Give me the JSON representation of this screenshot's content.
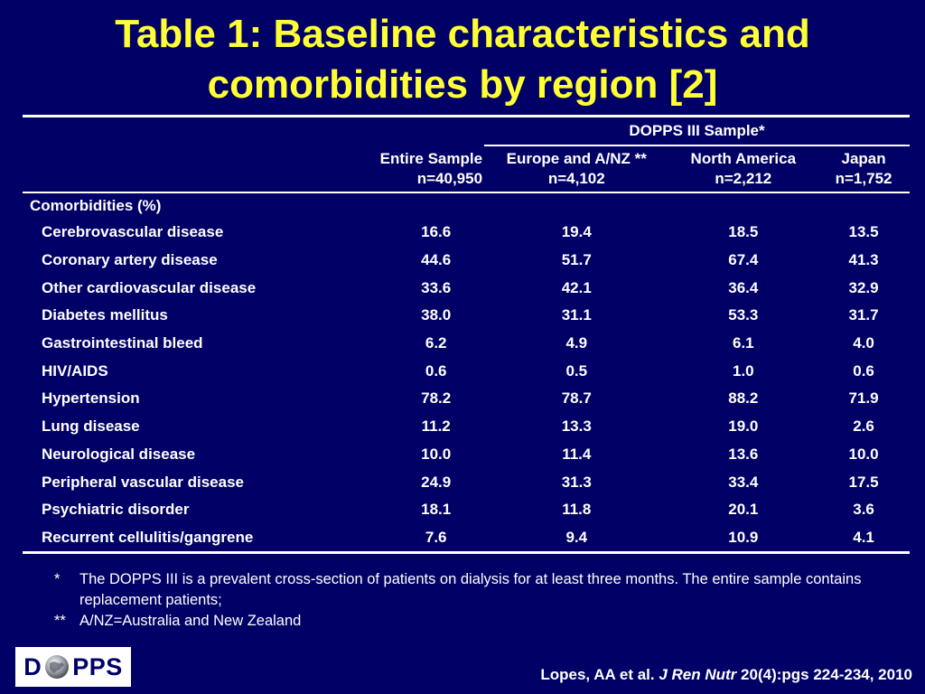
{
  "title": {
    "line1": "Table 1: Baseline characteristics and",
    "line2": "comorbidities by region [2]"
  },
  "table": {
    "group_header": "DOPPS III Sample*",
    "columns": [
      {
        "label": "Entire Sample",
        "n": "n=40,950"
      },
      {
        "label": "Europe and A/NZ **",
        "n": "n=4,102"
      },
      {
        "label": "North America",
        "n": "n=2,212"
      },
      {
        "label": "Japan",
        "n": "n=1,752"
      }
    ],
    "section_label": "Comorbidities (%)",
    "rows": [
      {
        "label": "Cerebrovascular disease",
        "values": [
          "16.6",
          "19.4",
          "18.5",
          "13.5"
        ]
      },
      {
        "label": "Coronary artery disease",
        "values": [
          "44.6",
          "51.7",
          "67.4",
          "41.3"
        ]
      },
      {
        "label": "Other cardiovascular disease",
        "values": [
          "33.6",
          "42.1",
          "36.4",
          "32.9"
        ]
      },
      {
        "label": "Diabetes mellitus",
        "values": [
          "38.0",
          "31.1",
          "53.3",
          "31.7"
        ]
      },
      {
        "label": "Gastrointestinal bleed",
        "values": [
          "6.2",
          "4.9",
          "6.1",
          "4.0"
        ]
      },
      {
        "label": "HIV/AIDS",
        "values": [
          "0.6",
          "0.5",
          "1.0",
          "0.6"
        ]
      },
      {
        "label": "Hypertension",
        "values": [
          "78.2",
          "78.7",
          "88.2",
          "71.9"
        ]
      },
      {
        "label": "Lung disease",
        "values": [
          "11.2",
          "13.3",
          "19.0",
          "2.6"
        ]
      },
      {
        "label": "Neurological disease",
        "values": [
          "10.0",
          "11.4",
          "13.6",
          "10.0"
        ]
      },
      {
        "label": "Peripheral vascular disease",
        "values": [
          "24.9",
          "31.3",
          "33.4",
          "17.5"
        ]
      },
      {
        "label": "Psychiatric disorder",
        "values": [
          "18.1",
          "11.8",
          "20.1",
          "3.6"
        ]
      },
      {
        "label": "Recurrent cellulitis/gangrene",
        "values": [
          "7.6",
          "9.4",
          "10.9",
          "4.1"
        ]
      }
    ]
  },
  "footnotes": [
    {
      "mark": "*",
      "text": "The DOPPS III is a prevalent cross-section of patients on dialysis for at least three months. The entire sample contains replacement patients;"
    },
    {
      "mark": "**",
      "text": "A/NZ=Australia and New Zealand"
    }
  ],
  "logo": {
    "left": "D",
    "right": "PPS",
    "icon": "globe-icon"
  },
  "citation": {
    "authors": "Lopes, AA et al.",
    "journal": "J Ren Nutr",
    "details": "20(4):pgs 224-234, 2010"
  },
  "colors": {
    "background": "#000066",
    "title": "#ffff33",
    "text": "#ffffff"
  }
}
